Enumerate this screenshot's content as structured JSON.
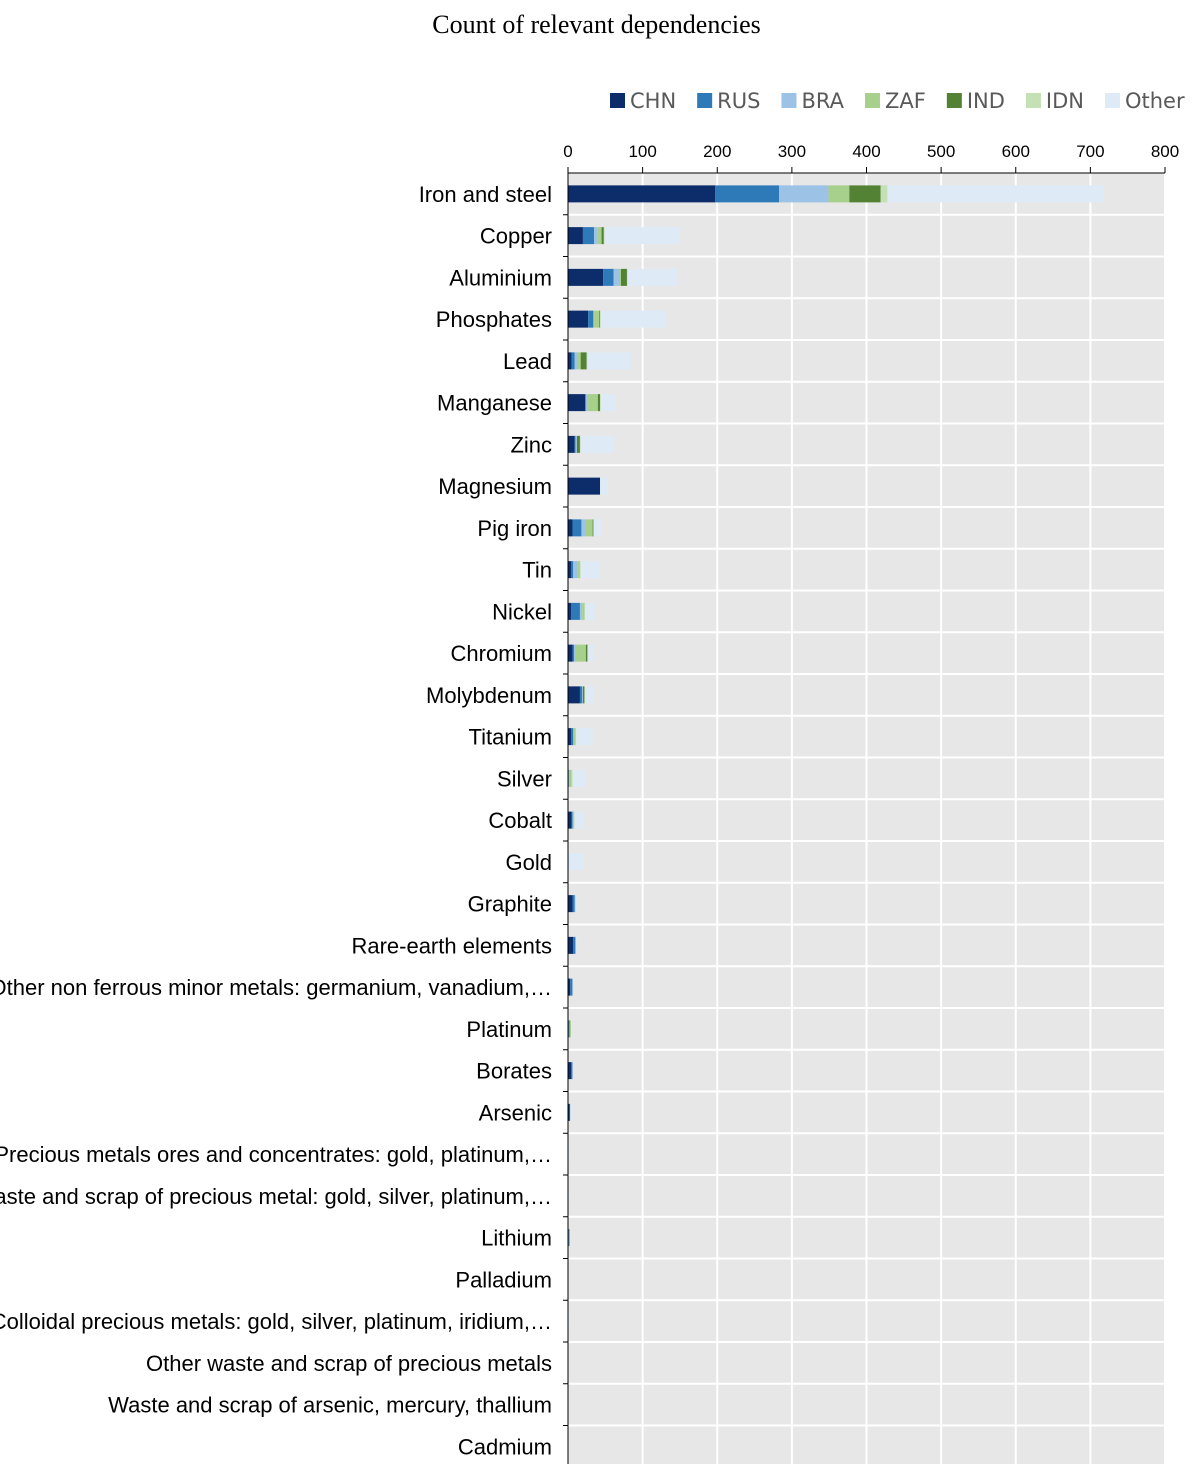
{
  "chart_data": {
    "type": "bar",
    "orientation": "horizontal",
    "stacked": true,
    "title": "Count of relevant dependencies",
    "xlim": [
      0,
      800
    ],
    "xticks": [
      0,
      100,
      200,
      300,
      400,
      500,
      600,
      700,
      800
    ],
    "grid": true,
    "legend_position": "top",
    "categories": [
      "Iron and steel",
      "Copper",
      "Aluminium",
      "Phosphates",
      "Lead",
      "Manganese",
      "Zinc",
      "Magnesium",
      "Pig iron",
      "Tin",
      "Nickel",
      "Chromium",
      "Molybdenum",
      "Titanium",
      "Silver",
      "Cobalt",
      "Gold",
      "Graphite",
      "Rare-earth elements",
      "Other non ferrous minor metals: germanium, vanadium,…",
      "Platinum",
      "Borates",
      "Arsenic",
      "Precious metals ores and concentrates: gold, platinum,…",
      "Waste and scrap of precious metal: gold, silver, platinum,…",
      "Lithium",
      "Palladium",
      "Colloidal precious metals: gold, silver, platinum, iridium,…",
      "Other waste and scrap of precious metals",
      "Waste and scrap of arsenic, mercury, thallium",
      "Cadmium"
    ],
    "series": [
      {
        "name": "CHN",
        "color": "#0c2d69",
        "values": [
          197,
          20,
          47,
          27,
          5,
          23,
          9,
          43,
          6,
          4,
          4,
          6,
          16,
          4,
          1,
          5,
          0,
          6,
          7,
          3,
          1,
          4,
          2,
          0,
          0,
          1,
          0,
          0,
          0,
          0,
          0
        ]
      },
      {
        "name": "RUS",
        "color": "#2e7ab8",
        "values": [
          86,
          15,
          14,
          7,
          4,
          1,
          1,
          0,
          12,
          3,
          12,
          2,
          3,
          3,
          0,
          1,
          0,
          3,
          3,
          3,
          1,
          2,
          1,
          0,
          0,
          1,
          0,
          0,
          0,
          0,
          0
        ]
      },
      {
        "name": "BRA",
        "color": "#9cc2e5",
        "values": [
          66,
          4,
          8,
          1,
          3,
          2,
          2,
          0,
          6,
          6,
          3,
          2,
          1,
          1,
          1,
          1,
          1,
          1,
          0,
          0,
          0,
          0,
          0,
          0,
          0,
          0,
          0,
          0,
          0,
          0,
          0
        ]
      },
      {
        "name": "ZAF",
        "color": "#a8d08d",
        "values": [
          28,
          6,
          2,
          7,
          5,
          14,
          0,
          0,
          9,
          3,
          3,
          14,
          0,
          2,
          3,
          1,
          0,
          0,
          0,
          0,
          2,
          0,
          0,
          0,
          0,
          0,
          0,
          0,
          0,
          0,
          0
        ]
      },
      {
        "name": "IND",
        "color": "#548235",
        "values": [
          42,
          3,
          8,
          1,
          8,
          3,
          4,
          0,
          1,
          0,
          0,
          2,
          2,
          0,
          0,
          0,
          0,
          0,
          0,
          0,
          0,
          0,
          0,
          0,
          0,
          0,
          0,
          0,
          0,
          0,
          0
        ]
      },
      {
        "name": "IDN",
        "color": "#c5e0b4",
        "values": [
          9,
          1,
          1,
          1,
          1,
          1,
          1,
          0,
          1,
          1,
          1,
          1,
          1,
          1,
          1,
          1,
          0,
          0,
          0,
          0,
          0,
          0,
          0,
          0,
          0,
          0,
          0,
          0,
          0,
          0,
          0
        ]
      },
      {
        "name": "Other",
        "color": "#deebf7",
        "values": [
          290,
          101,
          66,
          87,
          58,
          20,
          45,
          10,
          10,
          26,
          13,
          7,
          12,
          22,
          17,
          13,
          20,
          2,
          2,
          1,
          1,
          1,
          1,
          2,
          2,
          1,
          0,
          2,
          0,
          0,
          0
        ]
      }
    ]
  }
}
